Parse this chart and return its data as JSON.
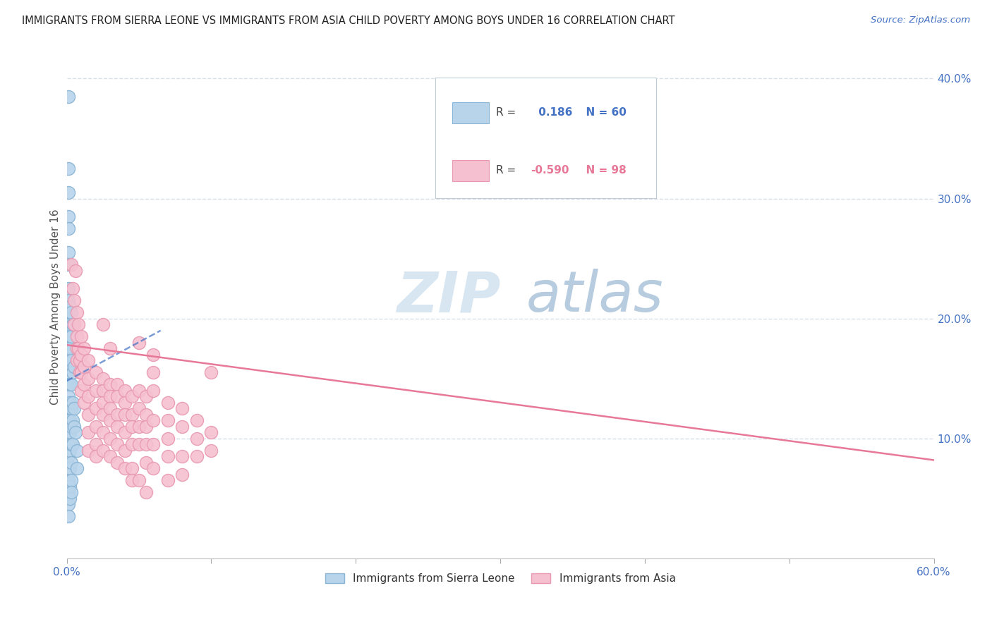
{
  "title": "IMMIGRANTS FROM SIERRA LEONE VS IMMIGRANTS FROM ASIA CHILD POVERTY AMONG BOYS UNDER 16 CORRELATION CHART",
  "source": "Source: ZipAtlas.com",
  "ylabel": "Child Poverty Among Boys Under 16",
  "xlim": [
    0.0,
    0.6
  ],
  "ylim": [
    0.0,
    0.42
  ],
  "xtick_vals": [
    0.0,
    0.1,
    0.2,
    0.3,
    0.4,
    0.5,
    0.6
  ],
  "xticklabels": [
    "0.0%",
    "",
    "",
    "",
    "",
    "",
    "60.0%"
  ],
  "yticks_right": [
    0.1,
    0.2,
    0.3,
    0.4
  ],
  "yticklabels_right": [
    "10.0%",
    "20.0%",
    "30.0%",
    "40.0%"
  ],
  "sierra_leone_R": 0.186,
  "sierra_leone_N": 60,
  "asia_R": -0.59,
  "asia_N": 98,
  "sierra_leone_color": "#b8d4eb",
  "sierra_leone_edge": "#8ab4d4",
  "asia_color": "#f5c0d0",
  "asia_edge": "#e898b0",
  "trend_sierra_color": "#4472c4",
  "trend_asia_color": "#e87898",
  "watermark_zip": "ZIP",
  "watermark_atlas": "atlas",
  "watermark_color_zip": "#d0dff0",
  "watermark_color_atlas": "#b8cce4",
  "grid_color": "#d8dfe8",
  "legend_box_color": "#e8eef4",
  "legend_edge_color": "#c8d4e0",
  "sierra_leone_data": [
    [
      0.001,
      0.385
    ],
    [
      0.001,
      0.325
    ],
    [
      0.001,
      0.285
    ],
    [
      0.001,
      0.275
    ],
    [
      0.001,
      0.255
    ],
    [
      0.001,
      0.245
    ],
    [
      0.001,
      0.305
    ],
    [
      0.001,
      0.225
    ],
    [
      0.001,
      0.215
    ],
    [
      0.001,
      0.205
    ],
    [
      0.001,
      0.195
    ],
    [
      0.001,
      0.185
    ],
    [
      0.001,
      0.175
    ],
    [
      0.001,
      0.165
    ],
    [
      0.001,
      0.155
    ],
    [
      0.001,
      0.145
    ],
    [
      0.001,
      0.135
    ],
    [
      0.001,
      0.125
    ],
    [
      0.001,
      0.115
    ],
    [
      0.001,
      0.105
    ],
    [
      0.001,
      0.095
    ],
    [
      0.001,
      0.085
    ],
    [
      0.001,
      0.075
    ],
    [
      0.001,
      0.065
    ],
    [
      0.001,
      0.055
    ],
    [
      0.001,
      0.045
    ],
    [
      0.001,
      0.035
    ],
    [
      0.002,
      0.21
    ],
    [
      0.002,
      0.195
    ],
    [
      0.002,
      0.175
    ],
    [
      0.002,
      0.16
    ],
    [
      0.002,
      0.145
    ],
    [
      0.002,
      0.13
    ],
    [
      0.002,
      0.115
    ],
    [
      0.002,
      0.105
    ],
    [
      0.002,
      0.09
    ],
    [
      0.002,
      0.075
    ],
    [
      0.002,
      0.06
    ],
    [
      0.002,
      0.05
    ],
    [
      0.003,
      0.205
    ],
    [
      0.003,
      0.185
    ],
    [
      0.003,
      0.165
    ],
    [
      0.003,
      0.145
    ],
    [
      0.003,
      0.125
    ],
    [
      0.003,
      0.11
    ],
    [
      0.003,
      0.095
    ],
    [
      0.003,
      0.08
    ],
    [
      0.003,
      0.065
    ],
    [
      0.003,
      0.055
    ],
    [
      0.004,
      0.195
    ],
    [
      0.004,
      0.155
    ],
    [
      0.004,
      0.13
    ],
    [
      0.004,
      0.115
    ],
    [
      0.004,
      0.095
    ],
    [
      0.005,
      0.16
    ],
    [
      0.005,
      0.125
    ],
    [
      0.005,
      0.11
    ],
    [
      0.006,
      0.105
    ],
    [
      0.007,
      0.09
    ],
    [
      0.007,
      0.075
    ]
  ],
  "asia_data": [
    [
      0.003,
      0.245
    ],
    [
      0.004,
      0.225
    ],
    [
      0.005,
      0.195
    ],
    [
      0.005,
      0.215
    ],
    [
      0.006,
      0.24
    ],
    [
      0.007,
      0.205
    ],
    [
      0.007,
      0.185
    ],
    [
      0.007,
      0.175
    ],
    [
      0.007,
      0.165
    ],
    [
      0.008,
      0.195
    ],
    [
      0.008,
      0.175
    ],
    [
      0.009,
      0.165
    ],
    [
      0.009,
      0.155
    ],
    [
      0.01,
      0.185
    ],
    [
      0.01,
      0.17
    ],
    [
      0.01,
      0.155
    ],
    [
      0.01,
      0.14
    ],
    [
      0.012,
      0.175
    ],
    [
      0.012,
      0.16
    ],
    [
      0.012,
      0.145
    ],
    [
      0.012,
      0.13
    ],
    [
      0.015,
      0.165
    ],
    [
      0.015,
      0.15
    ],
    [
      0.015,
      0.135
    ],
    [
      0.015,
      0.12
    ],
    [
      0.015,
      0.105
    ],
    [
      0.015,
      0.09
    ],
    [
      0.02,
      0.155
    ],
    [
      0.02,
      0.14
    ],
    [
      0.02,
      0.125
    ],
    [
      0.02,
      0.11
    ],
    [
      0.02,
      0.095
    ],
    [
      0.02,
      0.085
    ],
    [
      0.025,
      0.195
    ],
    [
      0.025,
      0.15
    ],
    [
      0.025,
      0.14
    ],
    [
      0.025,
      0.13
    ],
    [
      0.025,
      0.12
    ],
    [
      0.025,
      0.105
    ],
    [
      0.025,
      0.09
    ],
    [
      0.03,
      0.175
    ],
    [
      0.03,
      0.145
    ],
    [
      0.03,
      0.135
    ],
    [
      0.03,
      0.125
    ],
    [
      0.03,
      0.115
    ],
    [
      0.03,
      0.1
    ],
    [
      0.03,
      0.085
    ],
    [
      0.035,
      0.145
    ],
    [
      0.035,
      0.135
    ],
    [
      0.035,
      0.12
    ],
    [
      0.035,
      0.11
    ],
    [
      0.035,
      0.095
    ],
    [
      0.035,
      0.08
    ],
    [
      0.04,
      0.14
    ],
    [
      0.04,
      0.13
    ],
    [
      0.04,
      0.12
    ],
    [
      0.04,
      0.105
    ],
    [
      0.04,
      0.09
    ],
    [
      0.04,
      0.075
    ],
    [
      0.045,
      0.135
    ],
    [
      0.045,
      0.12
    ],
    [
      0.045,
      0.11
    ],
    [
      0.045,
      0.095
    ],
    [
      0.045,
      0.075
    ],
    [
      0.045,
      0.065
    ],
    [
      0.05,
      0.18
    ],
    [
      0.05,
      0.14
    ],
    [
      0.05,
      0.125
    ],
    [
      0.05,
      0.11
    ],
    [
      0.05,
      0.095
    ],
    [
      0.05,
      0.065
    ],
    [
      0.055,
      0.135
    ],
    [
      0.055,
      0.12
    ],
    [
      0.055,
      0.11
    ],
    [
      0.055,
      0.095
    ],
    [
      0.055,
      0.08
    ],
    [
      0.055,
      0.055
    ],
    [
      0.06,
      0.17
    ],
    [
      0.06,
      0.155
    ],
    [
      0.06,
      0.14
    ],
    [
      0.06,
      0.115
    ],
    [
      0.06,
      0.095
    ],
    [
      0.06,
      0.075
    ],
    [
      0.07,
      0.13
    ],
    [
      0.07,
      0.115
    ],
    [
      0.07,
      0.1
    ],
    [
      0.07,
      0.085
    ],
    [
      0.07,
      0.065
    ],
    [
      0.08,
      0.125
    ],
    [
      0.08,
      0.11
    ],
    [
      0.08,
      0.085
    ],
    [
      0.08,
      0.07
    ],
    [
      0.09,
      0.115
    ],
    [
      0.09,
      0.1
    ],
    [
      0.09,
      0.085
    ],
    [
      0.1,
      0.155
    ],
    [
      0.1,
      0.105
    ],
    [
      0.1,
      0.09
    ]
  ],
  "asia_trend_x": [
    0.0,
    0.6
  ],
  "asia_trend_y": [
    0.178,
    0.082
  ],
  "sl_trend_x": [
    0.0,
    0.065
  ],
  "sl_trend_y": [
    0.148,
    0.19
  ]
}
